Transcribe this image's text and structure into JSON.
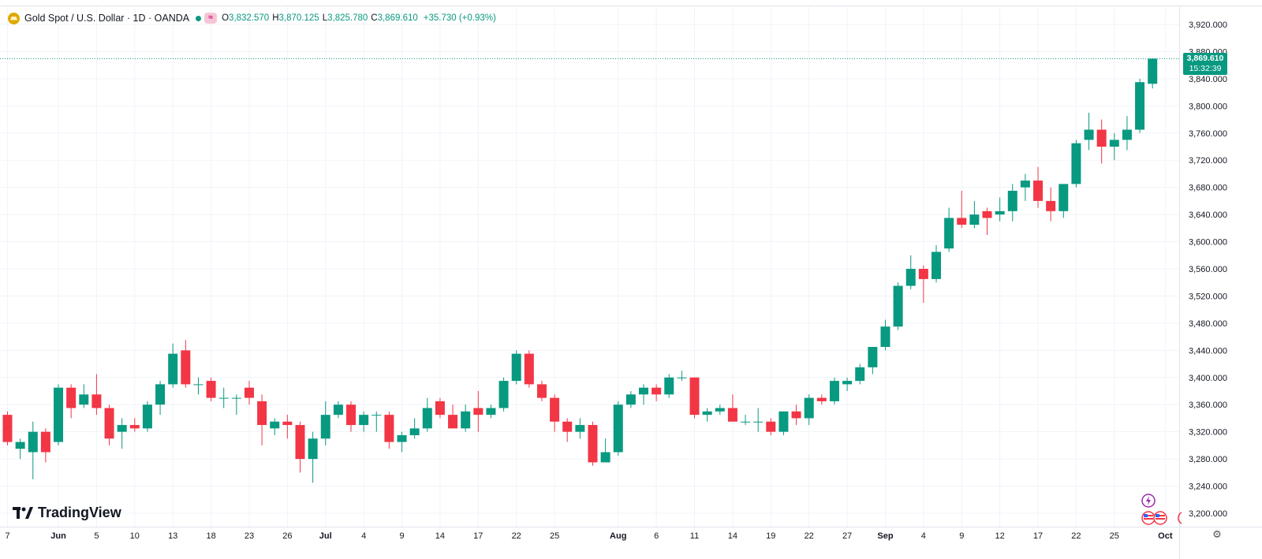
{
  "header": {
    "title": "Gold Spot / U.S. Dollar · 1D · OANDA",
    "open_label": "O",
    "open": "3,832.570",
    "high_label": "H",
    "high": "3,870.125",
    "low_label": "L",
    "low": "3,825.780",
    "close_label": "C",
    "close": "3,869.610",
    "change": "+35.730 (+0.93%)",
    "status_badge": "≈"
  },
  "price_tag": {
    "price": "3,869.610",
    "countdown": "15:32:39"
  },
  "logo": {
    "text": "TradingView"
  },
  "colors": {
    "up": "#089981",
    "down": "#f23645",
    "grid": "#f0f3fa",
    "text": "#131722"
  },
  "chart_data": {
    "type": "candlestick",
    "ylim": [
      3180,
      3940
    ],
    "y_ticks": [
      "3,200.000",
      "3,240.000",
      "3,280.000",
      "3,320.000",
      "3,360.000",
      "3,400.000",
      "3,440.000",
      "3,480.000",
      "3,520.000",
      "3,560.000",
      "3,600.000",
      "3,640.000",
      "3,680.000",
      "3,720.000",
      "3,760.000",
      "3,800.000",
      "3,840.000",
      "3,880.000",
      "3,920.000"
    ],
    "y_tick_values": [
      3200,
      3240,
      3280,
      3320,
      3360,
      3400,
      3440,
      3480,
      3520,
      3560,
      3600,
      3640,
      3680,
      3720,
      3760,
      3800,
      3840,
      3880,
      3920
    ],
    "x_ticks": [
      {
        "label": "7",
        "index": 0,
        "bold": false
      },
      {
        "label": "Jun",
        "index": 4,
        "bold": true
      },
      {
        "label": "5",
        "index": 7,
        "bold": false
      },
      {
        "label": "10",
        "index": 10,
        "bold": false
      },
      {
        "label": "13",
        "index": 13,
        "bold": false
      },
      {
        "label": "18",
        "index": 16,
        "bold": false
      },
      {
        "label": "23",
        "index": 19,
        "bold": false
      },
      {
        "label": "26",
        "index": 22,
        "bold": false
      },
      {
        "label": "Jul",
        "index": 25,
        "bold": true
      },
      {
        "label": "4",
        "index": 28,
        "bold": false
      },
      {
        "label": "9",
        "index": 31,
        "bold": false
      },
      {
        "label": "14",
        "index": 34,
        "bold": false
      },
      {
        "label": "17",
        "index": 37,
        "bold": false
      },
      {
        "label": "22",
        "index": 40,
        "bold": false
      },
      {
        "label": "25",
        "index": 43,
        "bold": false
      },
      {
        "label": "Aug",
        "index": 48,
        "bold": true
      },
      {
        "label": "6",
        "index": 51,
        "bold": false
      },
      {
        "label": "11",
        "index": 54,
        "bold": false
      },
      {
        "label": "14",
        "index": 57,
        "bold": false
      },
      {
        "label": "19",
        "index": 60,
        "bold": false
      },
      {
        "label": "22",
        "index": 63,
        "bold": false
      },
      {
        "label": "27",
        "index": 66,
        "bold": false
      },
      {
        "label": "Sep",
        "index": 69,
        "bold": true
      },
      {
        "label": "4",
        "index": 72,
        "bold": false
      },
      {
        "label": "9",
        "index": 75,
        "bold": false
      },
      {
        "label": "12",
        "index": 78,
        "bold": false
      },
      {
        "label": "17",
        "index": 81,
        "bold": false
      },
      {
        "label": "22",
        "index": 84,
        "bold": false
      },
      {
        "label": "25",
        "index": 87,
        "bold": false
      },
      {
        "label": "Oct",
        "index": 91,
        "bold": true
      }
    ],
    "last_price": 3869.61,
    "candles": [
      [
        3345,
        3350,
        3300,
        3305
      ],
      [
        3295,
        3310,
        3280,
        3305
      ],
      [
        3290,
        3335,
        3250,
        3320
      ],
      [
        3320,
        3325,
        3275,
        3290
      ],
      [
        3305,
        3390,
        3300,
        3385
      ],
      [
        3385,
        3390,
        3340,
        3355
      ],
      [
        3360,
        3390,
        3355,
        3375
      ],
      [
        3375,
        3405,
        3345,
        3355
      ],
      [
        3355,
        3360,
        3300,
        3310
      ],
      [
        3320,
        3340,
        3295,
        3330
      ],
      [
        3330,
        3340,
        3320,
        3325
      ],
      [
        3325,
        3365,
        3320,
        3360
      ],
      [
        3360,
        3395,
        3345,
        3390
      ],
      [
        3390,
        3450,
        3385,
        3435
      ],
      [
        3440,
        3455,
        3385,
        3390
      ],
      [
        3390,
        3400,
        3375,
        3390
      ],
      [
        3395,
        3400,
        3365,
        3370
      ],
      [
        3370,
        3385,
        3355,
        3370
      ],
      [
        3370,
        3375,
        3345,
        3370
      ],
      [
        3385,
        3395,
        3360,
        3370
      ],
      [
        3365,
        3375,
        3300,
        3330
      ],
      [
        3325,
        3340,
        3315,
        3335
      ],
      [
        3335,
        3345,
        3310,
        3330
      ],
      [
        3330,
        3335,
        3260,
        3280
      ],
      [
        3280,
        3320,
        3245,
        3310
      ],
      [
        3310,
        3365,
        3300,
        3345
      ],
      [
        3345,
        3365,
        3340,
        3360
      ],
      [
        3360,
        3365,
        3320,
        3330
      ],
      [
        3330,
        3350,
        3320,
        3345
      ],
      [
        3345,
        3350,
        3320,
        3345
      ],
      [
        3345,
        3350,
        3295,
        3305
      ],
      [
        3305,
        3320,
        3290,
        3315
      ],
      [
        3315,
        3340,
        3310,
        3325
      ],
      [
        3325,
        3370,
        3320,
        3355
      ],
      [
        3365,
        3370,
        3340,
        3345
      ],
      [
        3345,
        3360,
        3325,
        3325
      ],
      [
        3325,
        3360,
        3320,
        3350
      ],
      [
        3355,
        3380,
        3320,
        3345
      ],
      [
        3345,
        3360,
        3340,
        3355
      ],
      [
        3355,
        3400,
        3350,
        3395
      ],
      [
        3395,
        3440,
        3390,
        3435
      ],
      [
        3435,
        3440,
        3385,
        3390
      ],
      [
        3390,
        3395,
        3365,
        3370
      ],
      [
        3370,
        3375,
        3320,
        3335
      ],
      [
        3335,
        3340,
        3305,
        3320
      ],
      [
        3320,
        3340,
        3310,
        3330
      ],
      [
        3330,
        3335,
        3270,
        3275
      ],
      [
        3275,
        3310,
        3275,
        3290
      ],
      [
        3290,
        3365,
        3285,
        3360
      ],
      [
        3360,
        3380,
        3355,
        3375
      ],
      [
        3375,
        3390,
        3360,
        3385
      ],
      [
        3385,
        3390,
        3365,
        3375
      ],
      [
        3375,
        3405,
        3370,
        3400
      ],
      [
        3400,
        3410,
        3395,
        3400
      ],
      [
        3400,
        3400,
        3340,
        3345
      ],
      [
        3345,
        3355,
        3335,
        3350
      ],
      [
        3350,
        3360,
        3345,
        3355
      ],
      [
        3355,
        3375,
        3335,
        3335
      ],
      [
        3335,
        3345,
        3330,
        3335
      ],
      [
        3335,
        3355,
        3320,
        3335
      ],
      [
        3335,
        3340,
        3315,
        3320
      ],
      [
        3320,
        3350,
        3315,
        3350
      ],
      [
        3350,
        3360,
        3330,
        3340
      ],
      [
        3340,
        3375,
        3330,
        3370
      ],
      [
        3370,
        3375,
        3360,
        3365
      ],
      [
        3365,
        3400,
        3360,
        3395
      ],
      [
        3390,
        3400,
        3380,
        3395
      ],
      [
        3395,
        3420,
        3390,
        3415
      ],
      [
        3415,
        3445,
        3405,
        3445
      ],
      [
        3445,
        3485,
        3440,
        3475
      ],
      [
        3475,
        3540,
        3470,
        3535
      ],
      [
        3535,
        3580,
        3530,
        3560
      ],
      [
        3560,
        3565,
        3510,
        3545
      ],
      [
        3545,
        3595,
        3540,
        3585
      ],
      [
        3590,
        3650,
        3585,
        3635
      ],
      [
        3635,
        3675,
        3620,
        3625
      ],
      [
        3625,
        3660,
        3620,
        3640
      ],
      [
        3645,
        3650,
        3610,
        3635
      ],
      [
        3640,
        3665,
        3630,
        3645
      ],
      [
        3645,
        3685,
        3630,
        3675
      ],
      [
        3680,
        3700,
        3660,
        3690
      ],
      [
        3690,
        3710,
        3650,
        3660
      ],
      [
        3660,
        3680,
        3630,
        3645
      ],
      [
        3645,
        3685,
        3635,
        3685
      ],
      [
        3685,
        3750,
        3680,
        3745
      ],
      [
        3750,
        3790,
        3735,
        3765
      ],
      [
        3765,
        3780,
        3715,
        3740
      ],
      [
        3740,
        3760,
        3720,
        3750
      ],
      [
        3750,
        3785,
        3735,
        3765
      ],
      [
        3765,
        3840,
        3760,
        3835
      ],
      [
        3832.57,
        3870.125,
        3825.78,
        3869.61
      ]
    ]
  }
}
